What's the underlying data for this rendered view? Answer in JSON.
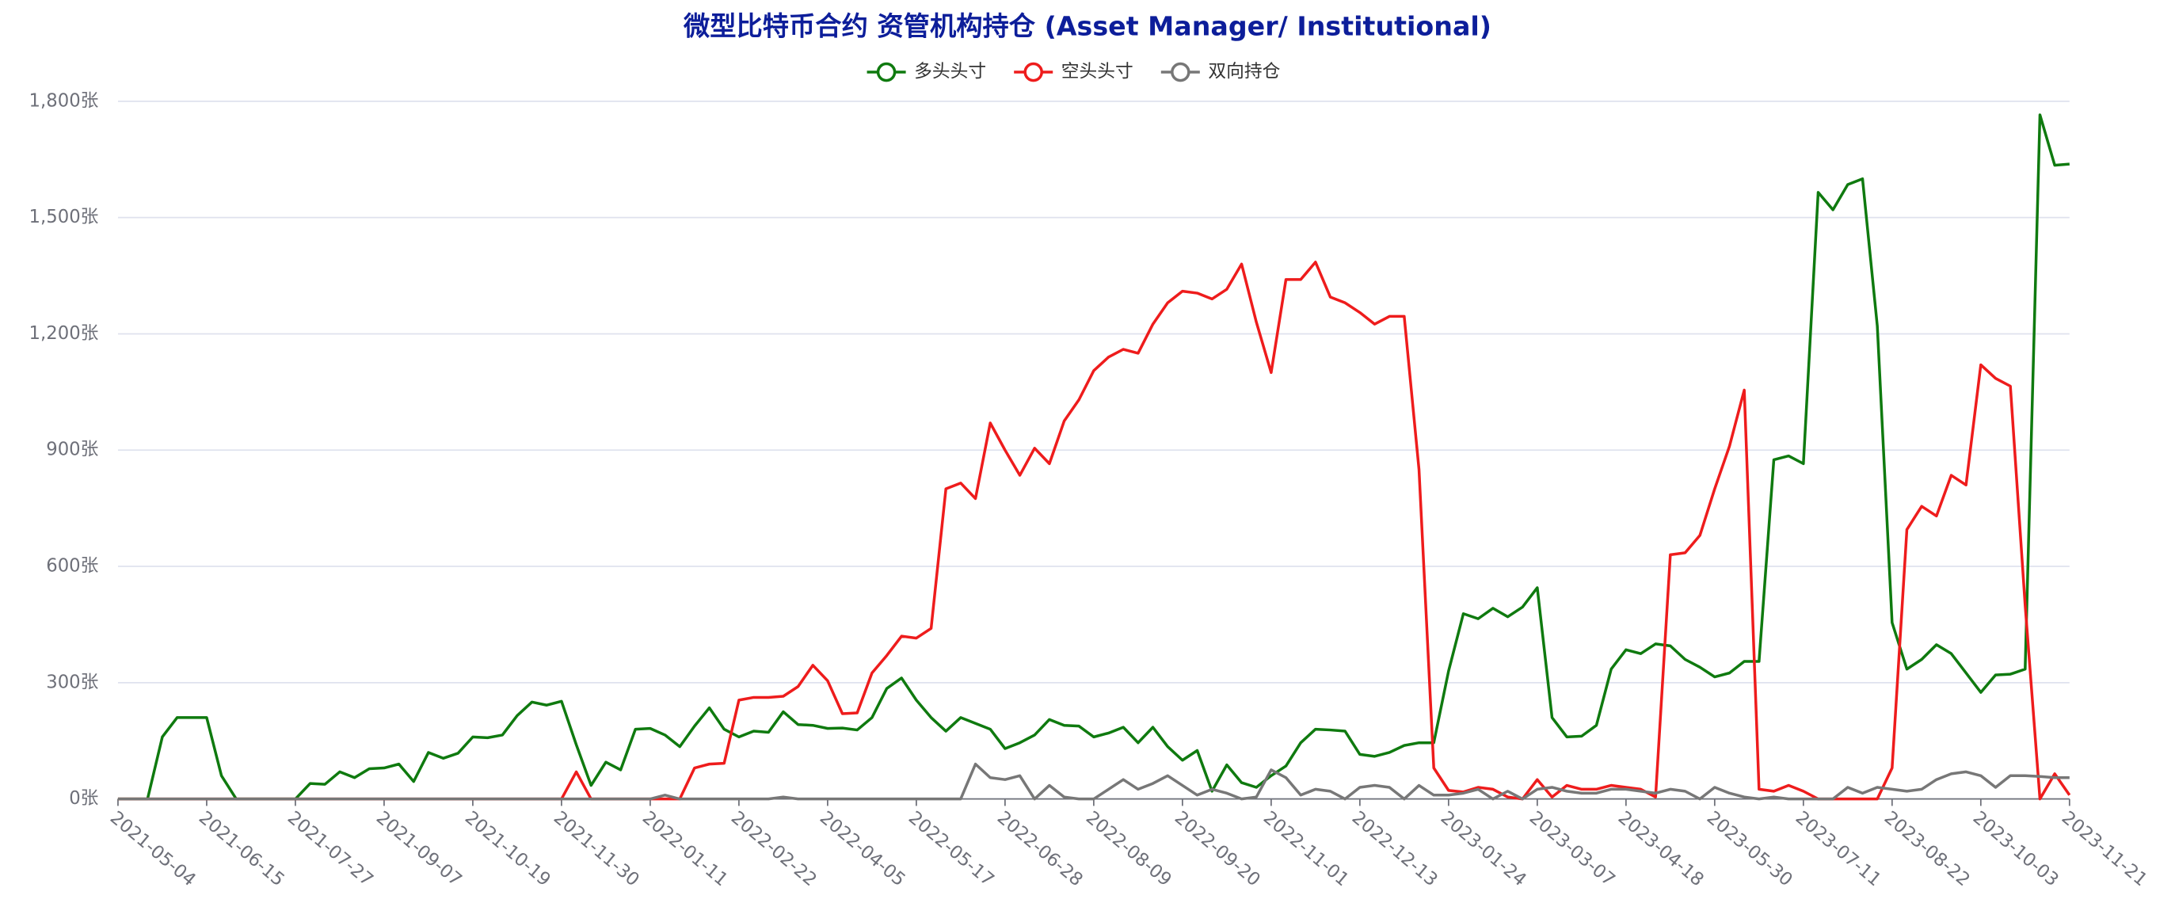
{
  "chart_data": {
    "type": "line",
    "title": "微型比特币合约 资管机构持仓 (Asset Manager/ Institutional)",
    "categories": [
      "2021-05-04",
      null,
      null,
      null,
      null,
      null,
      "2021-06-15",
      null,
      null,
      null,
      null,
      null,
      "2021-07-27",
      null,
      null,
      null,
      null,
      null,
      "2021-09-07",
      null,
      null,
      null,
      null,
      null,
      "2021-10-19",
      null,
      null,
      null,
      null,
      null,
      "2021-11-30",
      null,
      null,
      null,
      null,
      null,
      "2022-01-11",
      null,
      null,
      null,
      null,
      null,
      "2022-02-22",
      null,
      null,
      null,
      null,
      null,
      "2022-04-05",
      null,
      null,
      null,
      null,
      null,
      "2022-05-17",
      null,
      null,
      null,
      null,
      null,
      "2022-06-28",
      null,
      null,
      null,
      null,
      null,
      "2022-08-09",
      null,
      null,
      null,
      null,
      null,
      "2022-09-20",
      null,
      null,
      null,
      null,
      null,
      "2022-11-01",
      null,
      null,
      null,
      null,
      null,
      "2022-12-13",
      null,
      null,
      null,
      null,
      null,
      "2023-01-24",
      null,
      null,
      null,
      null,
      null,
      "2023-03-07",
      null,
      null,
      null,
      null,
      null,
      "2023-04-18",
      null,
      null,
      null,
      null,
      null,
      "2023-05-30",
      null,
      null,
      null,
      null,
      null,
      "2023-07-11",
      null,
      null,
      null,
      null,
      null,
      "2023-08-22",
      null,
      null,
      null,
      null,
      null,
      "2023-10-03",
      null,
      null,
      null,
      null,
      null,
      "2023-11-21"
    ],
    "series": [
      {
        "name": "多头头寸",
        "color": "#0f7a0f",
        "values": [
          0,
          0,
          0,
          160,
          210,
          210,
          210,
          60,
          0,
          0,
          0,
          0,
          0,
          40,
          38,
          70,
          55,
          78,
          80,
          90,
          45,
          120,
          105,
          118,
          160,
          158,
          165,
          215,
          250,
          242,
          252,
          140,
          35,
          95,
          75,
          180,
          182,
          165,
          135,
          188,
          235,
          180,
          160,
          175,
          172,
          225,
          192,
          190,
          182,
          183,
          178,
          210,
          285,
          312,
          255,
          210,
          175,
          210,
          195,
          180,
          130,
          145,
          165,
          205,
          190,
          188,
          160,
          170,
          185,
          145,
          185,
          135,
          100,
          125,
          20,
          88,
          42,
          30,
          60,
          85,
          145,
          180,
          178,
          175,
          115,
          110,
          120,
          138,
          145,
          145,
          330,
          478,
          465,
          492,
          470,
          495,
          545,
          210,
          160,
          162,
          190,
          335,
          385,
          375,
          400,
          395,
          360,
          340,
          315,
          325,
          355,
          355,
          875,
          885,
          865,
          1565,
          1520,
          1585,
          1600,
          1220,
          455,
          335,
          360,
          398,
          375,
          325,
          275,
          320,
          322,
          335,
          1765,
          1635,
          1638
        ]
      },
      {
        "name": "空头头寸",
        "color": "#ee1c1c",
        "values": [
          0,
          0,
          0,
          0,
          0,
          0,
          0,
          0,
          0,
          0,
          0,
          0,
          0,
          0,
          0,
          0,
          0,
          0,
          0,
          0,
          0,
          0,
          0,
          0,
          0,
          0,
          0,
          0,
          0,
          0,
          0,
          70,
          0,
          0,
          0,
          0,
          0,
          0,
          0,
          80,
          90,
          92,
          255,
          262,
          262,
          265,
          290,
          345,
          305,
          220,
          222,
          325,
          370,
          420,
          415,
          440,
          800,
          815,
          775,
          970,
          900,
          835,
          905,
          865,
          975,
          1030,
          1105,
          1140,
          1160,
          1150,
          1225,
          1280,
          1310,
          1305,
          1290,
          1315,
          1380,
          1230,
          1100,
          1340,
          1340,
          1385,
          1295,
          1280,
          1255,
          1225,
          1245,
          1245,
          850,
          80,
          22,
          18,
          30,
          25,
          5,
          0,
          50,
          5,
          35,
          25,
          25,
          35,
          30,
          25,
          5,
          630,
          635,
          680,
          800,
          910,
          1055,
          25,
          20,
          35,
          20,
          0,
          0,
          0,
          0,
          0,
          80,
          695,
          755,
          730,
          835,
          810,
          1120,
          1085,
          1065,
          500,
          0,
          65,
          10
        ]
      },
      {
        "name": "双向持仓",
        "color": "#777777",
        "values": [
          0,
          0,
          0,
          0,
          0,
          0,
          0,
          0,
          0,
          0,
          0,
          0,
          0,
          0,
          0,
          0,
          0,
          0,
          0,
          0,
          0,
          0,
          0,
          0,
          0,
          0,
          0,
          0,
          0,
          0,
          0,
          0,
          0,
          0,
          0,
          0,
          0,
          10,
          0,
          0,
          0,
          0,
          0,
          0,
          0,
          5,
          0,
          0,
          0,
          0,
          0,
          0,
          0,
          0,
          0,
          0,
          0,
          0,
          90,
          55,
          50,
          60,
          0,
          35,
          5,
          0,
          0,
          25,
          50,
          25,
          40,
          60,
          35,
          10,
          25,
          15,
          0,
          5,
          75,
          55,
          10,
          25,
          20,
          0,
          30,
          35,
          30,
          0,
          35,
          10,
          10,
          15,
          25,
          0,
          20,
          0,
          25,
          30,
          20,
          15,
          15,
          25,
          25,
          20,
          15,
          25,
          20,
          0,
          30,
          15,
          5,
          0,
          5,
          0,
          0,
          0,
          0,
          30,
          15,
          30,
          25,
          20,
          25,
          50,
          65,
          70,
          60,
          30,
          60,
          60,
          58,
          55,
          55
        ]
      }
    ],
    "ylim": [
      0,
      1800
    ],
    "yticks": [
      {
        "value": 0,
        "label": "0张"
      },
      {
        "value": 300,
        "label": "300张"
      },
      {
        "value": 600,
        "label": "600张"
      },
      {
        "value": 900,
        "label": "900张"
      },
      {
        "value": 1200,
        "label": "1,200张"
      },
      {
        "value": 1500,
        "label": "1,500张"
      },
      {
        "value": 1800,
        "label": "1,800张"
      }
    ],
    "grid": true,
    "legend": "top"
  }
}
